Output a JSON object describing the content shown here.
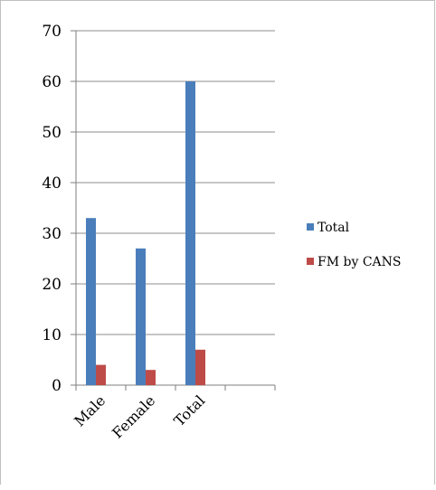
{
  "chart_data": {
    "type": "bar",
    "categories": [
      "Male",
      "Female",
      "Total"
    ],
    "series": [
      {
        "name": "Total",
        "values": [
          33,
          27,
          60
        ],
        "color": "#4a7ebb"
      },
      {
        "name": "FM by CANS",
        "values": [
          4,
          3,
          7
        ],
        "color": "#be4b48"
      }
    ],
    "title": "",
    "xlabel": "",
    "ylabel": "",
    "ylim": [
      0,
      70
    ],
    "yticks": [
      0,
      10,
      20,
      30,
      40,
      50,
      60,
      70
    ],
    "grid": true,
    "legend_position": "right",
    "gridline_color": "#8c8c8c",
    "axis_color": "#7f7f7f"
  }
}
